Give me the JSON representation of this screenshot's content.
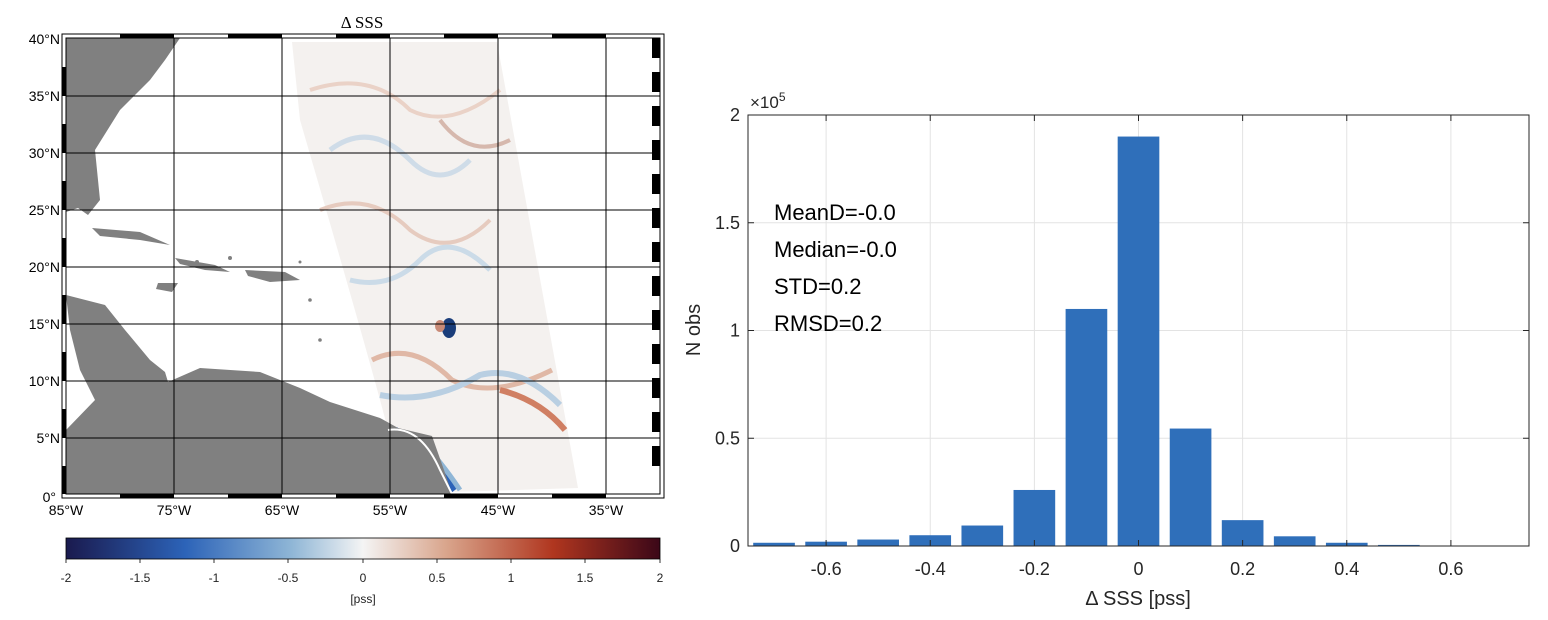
{
  "map": {
    "title": "Δ SSS",
    "lat_ticks": [
      "40°N",
      "35°N",
      "30°N",
      "25°N",
      "20°N",
      "15°N",
      "10°N",
      "5°N",
      "0°"
    ],
    "lon_ticks": [
      "85°W",
      "75°W",
      "65°W",
      "55°W",
      "45°W",
      "35°W"
    ],
    "colorbar": {
      "ticks": [
        "-2",
        "-1.5",
        "-1",
        "-0.5",
        "0",
        "0.5",
        "1",
        "1.5",
        "2"
      ],
      "label": "[pss]",
      "range": [
        -2,
        2
      ],
      "colors": [
        "#1a1a4e",
        "#2c63b8",
        "#8fb6d6",
        "#f4f4f4",
        "#d9a58c",
        "#b0361f",
        "#3b0718"
      ]
    },
    "land_color": "#808080"
  },
  "histogram": {
    "exponent_label": "×10",
    "exponent_power": "5",
    "xlabel": "Δ SSS [pss]",
    "ylabel": "N obs",
    "stats": {
      "mean": "MeanD=-0.0",
      "median": "Median=-0.0",
      "std": "STD=0.2",
      "rmsd": "RMSD=0.2"
    }
  },
  "chart_data": {
    "type": "bar",
    "title": "",
    "xlabel": "Δ SSS [pss]",
    "ylabel": "N obs",
    "bar_color": "#2f6fba",
    "x": [
      -0.7,
      -0.6,
      -0.5,
      -0.4,
      -0.3,
      -0.2,
      -0.1,
      0.0,
      0.1,
      0.2,
      0.3,
      0.4,
      0.5,
      0.6,
      0.7
    ],
    "values": [
      1500,
      2000,
      3000,
      5000,
      9500,
      26000,
      110000,
      190000,
      54500,
      12000,
      4500,
      1500,
      500,
      100,
      50
    ],
    "xlim": [
      -0.75,
      0.75
    ],
    "ylim": [
      0,
      200000
    ],
    "xticks": [
      -0.6,
      -0.4,
      -0.2,
      0,
      0.2,
      0.4,
      0.6
    ],
    "xtick_labels": [
      "-0.6",
      "-0.4",
      "-0.2",
      "0",
      "0.2",
      "0.4",
      "0.6"
    ],
    "yticks": [
      0,
      50000,
      100000,
      150000,
      200000
    ],
    "ytick_labels": [
      "0",
      "0.5",
      "1",
      "1.5",
      "2"
    ],
    "grid": true
  }
}
